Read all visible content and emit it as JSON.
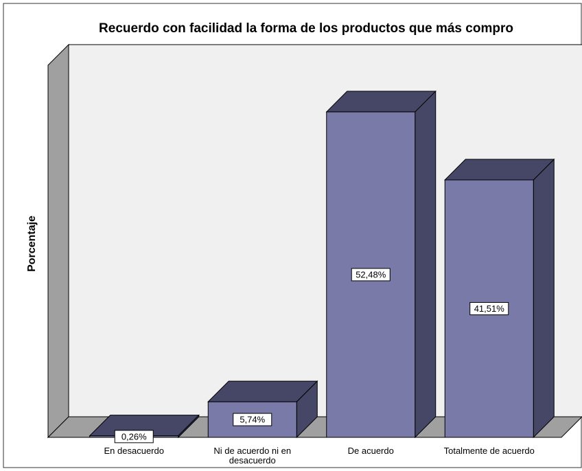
{
  "chart_data": {
    "type": "bar3d",
    "title": "Recuerdo con facilidad la forma de los productos que más compro",
    "y_label": "Porcentaje",
    "categories": [
      "En desacuerdo",
      "Ni de acuerdo ni en desacuerdo",
      "De acuerdo",
      "Totalmente de acuerdo"
    ],
    "values": [
      0.26,
      5.74,
      52.48,
      41.51
    ],
    "value_labels": [
      "0,26%",
      "5,74%",
      "52,48%",
      "41,51%"
    ],
    "color": "#7a7aa8",
    "ylim": [
      0,
      60
    ]
  }
}
